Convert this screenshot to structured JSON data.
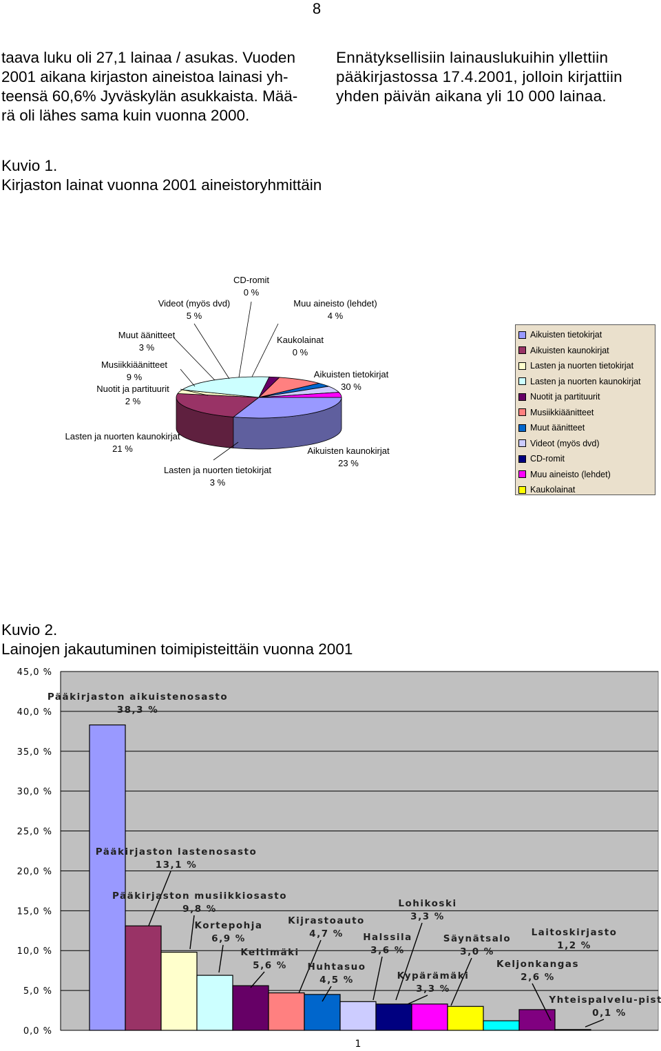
{
  "page": {
    "number": "8",
    "left_lines": [
      "taava luku oli 27,1 lainaa / asukas. Vuoden",
      "2001 aikana kirjaston aineistoa lainasi yh-",
      "teensä 60,6% Jyväskylän asukkaista. Mää-",
      "rä oli lähes sama kuin vuonna 2000."
    ],
    "right_lines": [
      "Ennätyksellisiin lainauslukuihin yllettiin",
      "pääkirjastossa 17.4.2001, jolloin kirjattiin",
      "yhden päivän aikana yli 10 000 lainaa."
    ]
  },
  "figure1": {
    "number": "Kuvio 1.",
    "title": "Kirjaston lainat vuonna 2001 aineistoryhmittäin"
  },
  "figure2": {
    "number": "Kuvio 2.",
    "title": "Lainojen jakautuminen toimipisteittäin vuonna 2001"
  },
  "chart_data": [
    {
      "type": "pie",
      "title": "Kirjaston lainat vuonna 2001 aineistoryhmittäin",
      "legend_position": "right",
      "slices": [
        {
          "name": "Aikuisten tietokirjat",
          "value": 30,
          "label": "30 %",
          "color": "#9999ff"
        },
        {
          "name": "Aikuisten kaunokirjat",
          "value": 23,
          "label": "23 %",
          "color": "#993366"
        },
        {
          "name": "Lasten ja nuorten tietokirjat",
          "value": 3,
          "label": "3 %",
          "color": "#ffffcc"
        },
        {
          "name": "Lasten ja nuorten kaunokirjat",
          "value": 21,
          "label": "21 %",
          "color": "#ccffff"
        },
        {
          "name": "Nuotit ja partituurit",
          "value": 2,
          "label": "2 %",
          "color": "#660066"
        },
        {
          "name": "Musiikkiäänitteet",
          "value": 9,
          "label": "9 %",
          "color": "#ff8080"
        },
        {
          "name": "Muut äänitteet",
          "value": 3,
          "label": "3 %",
          "color": "#0066cc"
        },
        {
          "name": "Videot (myös dvd)",
          "value": 5,
          "label": "5 %",
          "color": "#ccccff"
        },
        {
          "name": "CD-romit",
          "value": 0,
          "label": "0 %",
          "color": "#000080"
        },
        {
          "name": "Muu aineisto (lehdet)",
          "value": 4,
          "label": "4 %",
          "color": "#ff00ff"
        },
        {
          "name": "Kaukolainat",
          "value": 0,
          "label": "0 %",
          "color": "#ffff00"
        }
      ]
    },
    {
      "type": "bar",
      "title": "Lainojen jakautuminen toimipisteittäin vuonna 2001",
      "x_tick_label": "1",
      "ylim": [
        0,
        45
      ],
      "y_ticks": [
        "0,0 %",
        "5,0 %",
        "10,0 %",
        "15,0 %",
        "20,0 %",
        "25,0 %",
        "30,0 %",
        "35,0 %",
        "40,0 %",
        "45,0 %"
      ],
      "grid": true,
      "series": [
        {
          "name": "Pääkirjaston aikuistenosasto",
          "value": 38.3,
          "label": "38,3 %",
          "color": "#9999ff"
        },
        {
          "name": "Pääkirjaston lastenosasto",
          "value": 13.1,
          "label": "13,1 %",
          "color": "#993366"
        },
        {
          "name": "Pääkirjaston musiikkiosasto",
          "value": 9.8,
          "label": "9,8 %",
          "color": "#ffffcc"
        },
        {
          "name": "Kortepohja",
          "value": 6.9,
          "label": "6,9 %",
          "color": "#ccffff"
        },
        {
          "name": "Keltimäki",
          "value": 5.6,
          "label": "5,6 %",
          "color": "#660066"
        },
        {
          "name": "Kijrastoauto",
          "value": 4.7,
          "label": "4,7 %",
          "color": "#ff8080"
        },
        {
          "name": "Huhtasuo",
          "value": 4.5,
          "label": "4,5 %",
          "color": "#0066cc"
        },
        {
          "name": "Halssila",
          "value": 3.6,
          "label": "3,6 %",
          "color": "#ccccff"
        },
        {
          "name": "Kypärämäki",
          "value": 3.3,
          "label": "3,3 %",
          "color": "#000080"
        },
        {
          "name": "Lohikoski",
          "value": 3.3,
          "label": "3,3 %",
          "color": "#ff00ff"
        },
        {
          "name": "Säynätsalo",
          "value": 3.0,
          "label": "3,0 %",
          "color": "#ffff00"
        },
        {
          "name": "Laitoskirjasto",
          "value": 1.2,
          "label": "1,2 %",
          "color": "#00ffff"
        },
        {
          "name": "Keljonkangas",
          "value": 2.6,
          "label": "2,6 %",
          "color": "#800080"
        },
        {
          "name": "Yhteispalvelu-piste",
          "value": 0.1,
          "label": "0,1 %",
          "color": "#800000"
        }
      ]
    }
  ]
}
